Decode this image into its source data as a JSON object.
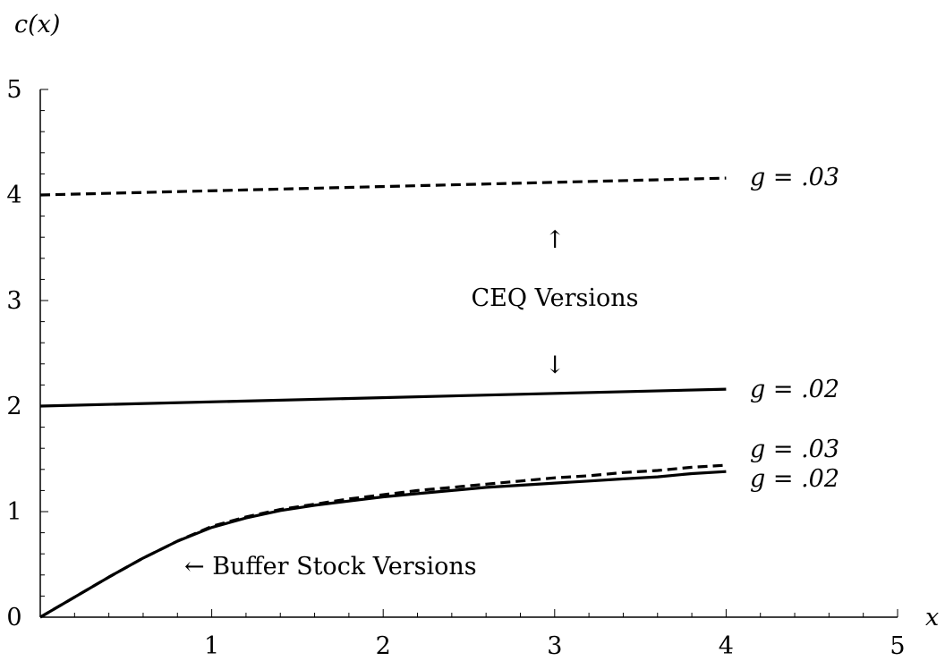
{
  "chart_data": {
    "type": "line",
    "title": "",
    "ylabel": "c(x)",
    "xlabel": "x",
    "xlim": [
      0,
      5
    ],
    "ylim": [
      0,
      5
    ],
    "xticks": [
      "1",
      "2",
      "3",
      "4",
      "5"
    ],
    "yticks": [
      "0",
      "1",
      "2",
      "3",
      "4",
      "5"
    ],
    "grid": false,
    "legend": "none",
    "series": [
      {
        "label": "g = .03",
        "group": "CEQ",
        "style": "dashed",
        "x": [
          0,
          4
        ],
        "y": [
          4.0,
          4.16
        ]
      },
      {
        "label": "g = .02",
        "group": "CEQ",
        "style": "solid",
        "x": [
          0,
          4
        ],
        "y": [
          2.0,
          2.16
        ]
      },
      {
        "label": "g = .03",
        "group": "Buffer Stock",
        "style": "dashed",
        "x": [
          0,
          0.2,
          0.4,
          0.6,
          0.8,
          1.0,
          1.2,
          1.4,
          1.6,
          1.8,
          2.0,
          2.2,
          2.4,
          2.6,
          2.8,
          3.0,
          3.2,
          3.4,
          3.6,
          3.8,
          4.0
        ],
        "y": [
          0,
          0.19,
          0.38,
          0.56,
          0.72,
          0.86,
          0.95,
          1.02,
          1.07,
          1.12,
          1.16,
          1.2,
          1.23,
          1.26,
          1.29,
          1.32,
          1.34,
          1.37,
          1.39,
          1.42,
          1.44
        ]
      },
      {
        "label": "g = .02",
        "group": "Buffer Stock",
        "style": "solid",
        "x": [
          0,
          0.2,
          0.4,
          0.6,
          0.8,
          1.0,
          1.2,
          1.4,
          1.6,
          1.8,
          2.0,
          2.2,
          2.4,
          2.6,
          2.8,
          3.0,
          3.2,
          3.4,
          3.6,
          3.8,
          4.0
        ],
        "y": [
          0,
          0.19,
          0.38,
          0.56,
          0.72,
          0.85,
          0.94,
          1.01,
          1.06,
          1.1,
          1.14,
          1.17,
          1.2,
          1.23,
          1.25,
          1.27,
          1.29,
          1.31,
          1.33,
          1.36,
          1.38
        ]
      }
    ],
    "annotations": {
      "ceq_versions": "CEQ Versions",
      "up_arrow": "↑",
      "down_arrow": "↓",
      "buffer_stock": "← Buffer Stock Versions"
    }
  }
}
